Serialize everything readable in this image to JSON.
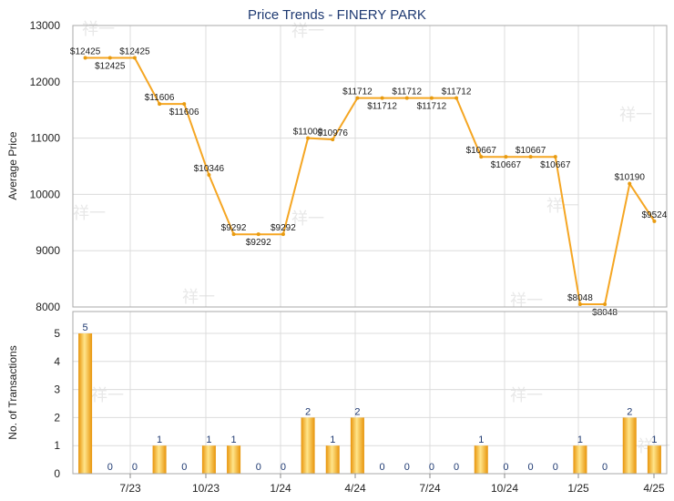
{
  "chart_data": [
    {
      "type": "line",
      "title": "Price Trends - FINERY PARK",
      "ylabel": "Average Price",
      "ylim": [
        8000,
        13000
      ],
      "yticks": [
        8000,
        9000,
        10000,
        11000,
        12000,
        13000
      ],
      "x_tick_labels": [
        "7/23",
        "10/23",
        "1/24",
        "4/24",
        "7/24",
        "10/24",
        "1/25",
        "4/25"
      ],
      "grid": true,
      "color": "#f5a623",
      "points": [
        {
          "label": "$12425",
          "value": 12425
        },
        {
          "label": "$12425",
          "value": 12425
        },
        {
          "label": "$12425",
          "value": 12425
        },
        {
          "label": "$11606",
          "value": 11606
        },
        {
          "label": "$11606",
          "value": 11606
        },
        {
          "label": "$10346",
          "value": 10346
        },
        {
          "label": "$9292",
          "value": 9292
        },
        {
          "label": "$9292",
          "value": 9292
        },
        {
          "label": "$9292",
          "value": 9292
        },
        {
          "label": "$11000",
          "value": 11000
        },
        {
          "label": "$10976",
          "value": 10976
        },
        {
          "label": "$11712",
          "value": 11712
        },
        {
          "label": "$11712",
          "value": 11712
        },
        {
          "label": "$11712",
          "value": 11712
        },
        {
          "label": "$11712",
          "value": 11712
        },
        {
          "label": "$11712",
          "value": 11712
        },
        {
          "label": "$10667",
          "value": 10667
        },
        {
          "label": "$10667",
          "value": 10667
        },
        {
          "label": "$10667",
          "value": 10667
        },
        {
          "label": "$10667",
          "value": 10667
        },
        {
          "label": "$8048",
          "value": 8048
        },
        {
          "label": "$8048",
          "value": 8048
        },
        {
          "label": "$10190",
          "value": 10190
        },
        {
          "label": "$9524",
          "value": 9524
        }
      ]
    },
    {
      "type": "bar",
      "ylabel": "No. of Transactions",
      "ylim": [
        0,
        5
      ],
      "yticks": [
        0,
        1,
        2,
        3,
        4,
        5
      ],
      "x_tick_labels": [
        "7/23",
        "10/23",
        "1/24",
        "4/24",
        "7/24",
        "10/24",
        "1/25",
        "4/25"
      ],
      "grid": true,
      "color": "#f5a623",
      "values": [
        5,
        0,
        0,
        1,
        0,
        1,
        1,
        0,
        0,
        2,
        1,
        2,
        0,
        0,
        0,
        0,
        1,
        0,
        0,
        0,
        1,
        0,
        2,
        1
      ]
    }
  ]
}
